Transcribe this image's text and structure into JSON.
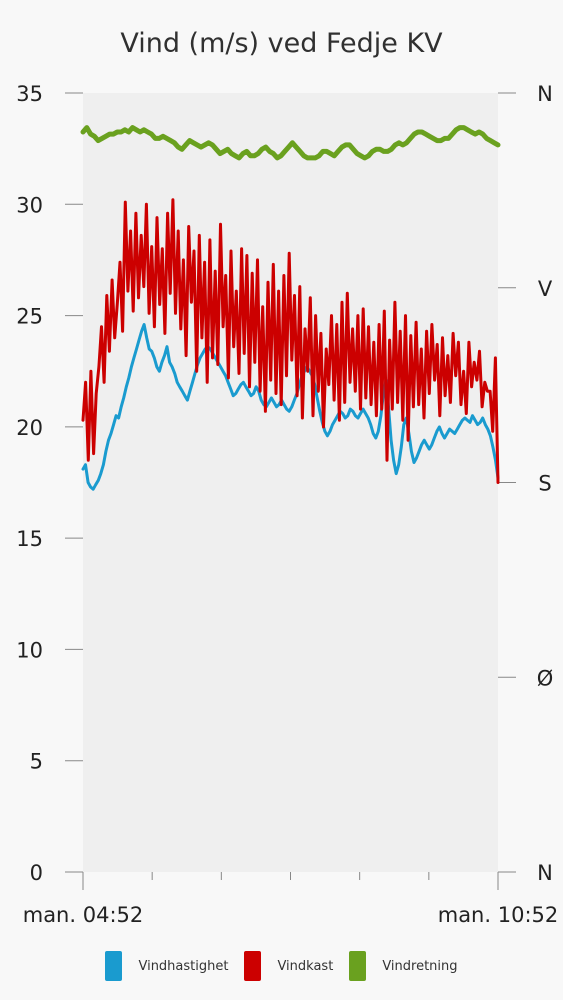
{
  "chart_data": {
    "type": "line",
    "title": "Vind (m/s) ved Fedje KV",
    "xlabel": "",
    "ylabel": "",
    "x_tick_labels": [
      "man. 04:52",
      "man. 10:52"
    ],
    "x_range": [
      "04:52",
      "10:52"
    ],
    "ylim": [
      0,
      35
    ],
    "y_ticks": [
      0,
      5,
      10,
      15,
      20,
      25,
      30,
      35
    ],
    "y2_ticks": [
      "N",
      "Ø",
      "S",
      "V",
      "N"
    ],
    "y2_note_values_deg": [
      0,
      90,
      180,
      270,
      360
    ],
    "grid": false,
    "legend_position": "bottom",
    "series": [
      {
        "name": "Vindhastighet",
        "color": "#1a9bcf",
        "axis": "left",
        "values": [
          18.1,
          18.3,
          17.5,
          17.3,
          17.2,
          17.4,
          17.6,
          17.9,
          18.3,
          18.9,
          19.4,
          19.7,
          20.1,
          20.5,
          20.4,
          20.9,
          21.3,
          21.8,
          22.2,
          22.7,
          23.1,
          23.5,
          23.9,
          24.3,
          24.6,
          24.0,
          23.5,
          23.4,
          23.1,
          22.7,
          22.5,
          22.9,
          23.2,
          23.6,
          22.9,
          22.7,
          22.4,
          22.0,
          21.8,
          21.6,
          21.4,
          21.2,
          21.6,
          22.0,
          22.4,
          22.8,
          23.1,
          23.3,
          23.5,
          23.6,
          23.5,
          23.3,
          23.1,
          22.9,
          22.7,
          22.5,
          22.3,
          22.0,
          21.7,
          21.4,
          21.5,
          21.7,
          21.9,
          22.0,
          21.8,
          21.6,
          21.4,
          21.5,
          21.8,
          21.6,
          21.2,
          21.0,
          20.9,
          21.1,
          21.3,
          21.1,
          20.9,
          21.0,
          21.2,
          21.0,
          20.8,
          20.7,
          20.9,
          21.2,
          21.5,
          21.9,
          22.3,
          22.5,
          22.7,
          22.5,
          22.3,
          21.9,
          21.3,
          20.7,
          20.2,
          19.8,
          19.6,
          19.8,
          20.1,
          20.3,
          20.5,
          20.7,
          20.6,
          20.4,
          20.5,
          20.8,
          20.7,
          20.5,
          20.4,
          20.6,
          20.8,
          20.6,
          20.4,
          20.1,
          19.7,
          19.5,
          19.8,
          20.5,
          21.5,
          22.1,
          20.9,
          19.4,
          18.5,
          17.9,
          18.3,
          19.1,
          20.1,
          20.4,
          19.7,
          18.9,
          18.4,
          18.6,
          18.9,
          19.2,
          19.4,
          19.2,
          19.0,
          19.2,
          19.5,
          19.8,
          20.0,
          19.7,
          19.5,
          19.7,
          19.9,
          19.8,
          19.7,
          19.9,
          20.1,
          20.3,
          20.4,
          20.3,
          20.2,
          20.5,
          20.3,
          20.1,
          20.2,
          20.4,
          20.1,
          19.9,
          19.6,
          19.1,
          18.5,
          17.7
        ],
        "values_note": "Vindhastighet"
      },
      {
        "name": "Vindkast",
        "color": "#cc0000",
        "axis": "left",
        "values": [
          20.3,
          22.0,
          18.5,
          22.5,
          18.8,
          21.5,
          22.7,
          24.5,
          22.0,
          25.9,
          23.4,
          26.6,
          24.0,
          25.6,
          27.4,
          24.3,
          30.1,
          26.1,
          28.8,
          25.2,
          29.6,
          25.8,
          28.6,
          26.3,
          30.0,
          25.1,
          28.1,
          24.5,
          29.4,
          25.5,
          28.0,
          24.2,
          29.6,
          26.0,
          30.2,
          25.1,
          28.8,
          24.4,
          27.5,
          23.2,
          29.0,
          25.6,
          27.9,
          22.5,
          28.6,
          24.0,
          27.4,
          22.0,
          28.4,
          23.1,
          27.0,
          22.8,
          29.1,
          24.5,
          26.8,
          22.2,
          27.9,
          23.6,
          26.1,
          22.4,
          28.0,
          23.3,
          27.7,
          21.8,
          26.9,
          22.9,
          27.5,
          21.6,
          25.4,
          20.7,
          26.5,
          22.1,
          27.3,
          21.5,
          26.1,
          21.0,
          26.8,
          22.3,
          27.8,
          23.0,
          25.9,
          21.4,
          26.3,
          20.4,
          24.4,
          22.5,
          25.8,
          20.5,
          25.0,
          21.6,
          24.2,
          20.0,
          23.5,
          21.9,
          25.0,
          21.2,
          24.6,
          20.3,
          25.6,
          21.1,
          26.0,
          22.0,
          24.4,
          21.6,
          25.0,
          20.8,
          25.3,
          21.3,
          24.5,
          21.0,
          23.8,
          20.5,
          24.6,
          20.8,
          25.2,
          18.5,
          23.9,
          20.8,
          25.6,
          21.1,
          24.3,
          20.3,
          25.0,
          19.4,
          24.1,
          20.9,
          24.7,
          21.0,
          23.5,
          20.4,
          24.3,
          21.5,
          24.6,
          22.1,
          23.7,
          20.5,
          24.0,
          21.4,
          23.2,
          21.1,
          24.2,
          22.3,
          23.8,
          21.0,
          22.5,
          20.6,
          23.8,
          21.8,
          22.9,
          22.1,
          23.4,
          20.9,
          22.0,
          21.6,
          21.6,
          19.8,
          23.1,
          17.5
        ],
        "values_note": "Vindkast"
      },
      {
        "name": "Vindretning",
        "color": "#6aa11f",
        "axis": "right",
        "unit": "deg",
        "values": [
          342,
          344,
          341,
          340,
          338,
          339,
          340,
          341,
          341,
          342,
          342,
          343,
          342,
          344,
          343,
          342,
          343,
          342,
          341,
          339,
          339,
          340,
          339,
          338,
          337,
          335,
          334,
          336,
          338,
          337,
          336,
          335,
          336,
          337,
          336,
          334,
          332,
          333,
          334,
          332,
          331,
          330,
          332,
          333,
          331,
          331,
          332,
          334,
          335,
          333,
          332,
          330,
          331,
          333,
          335,
          337,
          335,
          333,
          331,
          330,
          330,
          330,
          331,
          333,
          333,
          332,
          331,
          333,
          335,
          336,
          336,
          334,
          332,
          331,
          330,
          331,
          333,
          334,
          334,
          333,
          333,
          334,
          336,
          337,
          336,
          337,
          339,
          341,
          342,
          342,
          341,
          340,
          339,
          338,
          338,
          339,
          339,
          341,
          343,
          344,
          344,
          343,
          342,
          341,
          342,
          341,
          339,
          338,
          337,
          336
        ],
        "values_note": "Vindretning"
      }
    ]
  },
  "legend": [
    {
      "label": "Vindhastighet",
      "color": "#1a9bcf"
    },
    {
      "label": "Vindkast",
      "color": "#cc0000"
    },
    {
      "label": "Vindretning",
      "color": "#6aa11f"
    }
  ]
}
